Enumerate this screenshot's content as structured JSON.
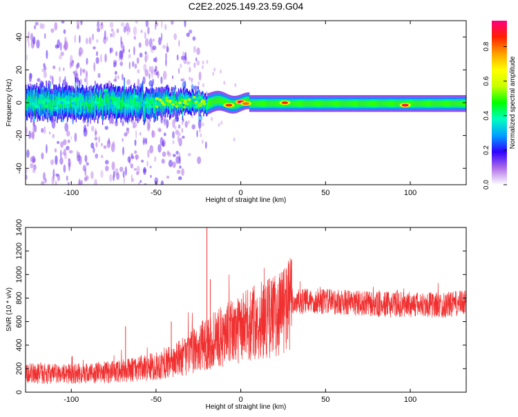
{
  "title": "C2E2.2025.149.23.59.G04",
  "colors": {
    "snr_line": "#f03030",
    "axis": "#000000",
    "background": "#ffffff"
  },
  "chart_data": [
    {
      "type": "heatmap",
      "xlabel": "Height of straight line (km)",
      "ylabel": "Frequency (Hz)",
      "xlim": [
        -127,
        133
      ],
      "ylim": [
        -50,
        50
      ],
      "xticks": [
        -100,
        -50,
        0,
        50,
        100
      ],
      "yticks": [
        40,
        20,
        0,
        -20,
        -40
      ],
      "colorbar": {
        "label": "Normalized spectral amplitude",
        "range": [
          0,
          0.95
        ],
        "ticks": [
          "0.8",
          "0.6",
          "0.4",
          "0.2",
          "0.0"
        ],
        "tick_values": [
          0.8,
          0.6,
          0.4,
          0.2,
          0.0
        ],
        "colormap": [
          "#ffffff",
          "#b070e8",
          "#3000ff",
          "#00a0ff",
          "#00ffc0",
          "#00ff00",
          "#c8ff00",
          "#ffff00",
          "#ffa000",
          "#ff2000",
          "#ff0080"
        ]
      },
      "ridge": {
        "description_frequency_hz": 0,
        "band_halfwidth_hz": [
          [
            -127,
            6
          ],
          [
            -60,
            6
          ],
          [
            -25,
            4
          ],
          [
            0,
            3
          ],
          [
            133,
            3
          ]
        ],
        "hotspots": [
          {
            "x": -7,
            "y": -1.5,
            "value": 0.85
          },
          {
            "x": 0,
            "y": 0.5,
            "value": 0.95
          },
          {
            "x": 3,
            "y": -0.5,
            "value": 0.8
          },
          {
            "x": 26,
            "y": 0,
            "value": 0.85
          },
          {
            "x": 97,
            "y": -1.5,
            "value": 0.9
          }
        ]
      }
    },
    {
      "type": "line",
      "xlabel": "Height of straight line (km)",
      "ylabel": "SNR (10 * v/v)",
      "xlim": [
        -127,
        133
      ],
      "ylim": [
        0,
        1400
      ],
      "xticks": [
        -100,
        -50,
        0,
        50,
        100
      ],
      "yticks": [
        0,
        200,
        400,
        600,
        800,
        1000,
        1200,
        1400
      ],
      "series": [
        {
          "x": [
            -127,
            -110,
            -90,
            -70,
            -50,
            -40,
            -30,
            -20,
            -10,
            0,
            10,
            20,
            30,
            40,
            60,
            80,
            100,
            120,
            133
          ],
          "values": [
            160,
            155,
            160,
            180,
            220,
            260,
            330,
            420,
            480,
            540,
            610,
            650,
            760,
            775,
            765,
            745,
            745,
            740,
            760
          ],
          "spikes": [
            [
              -20,
              1400
            ],
            [
              -18,
              960
            ],
            [
              30,
              1130
            ],
            [
              -68,
              560
            ],
            [
              -41,
              600
            ]
          ]
        }
      ]
    }
  ]
}
